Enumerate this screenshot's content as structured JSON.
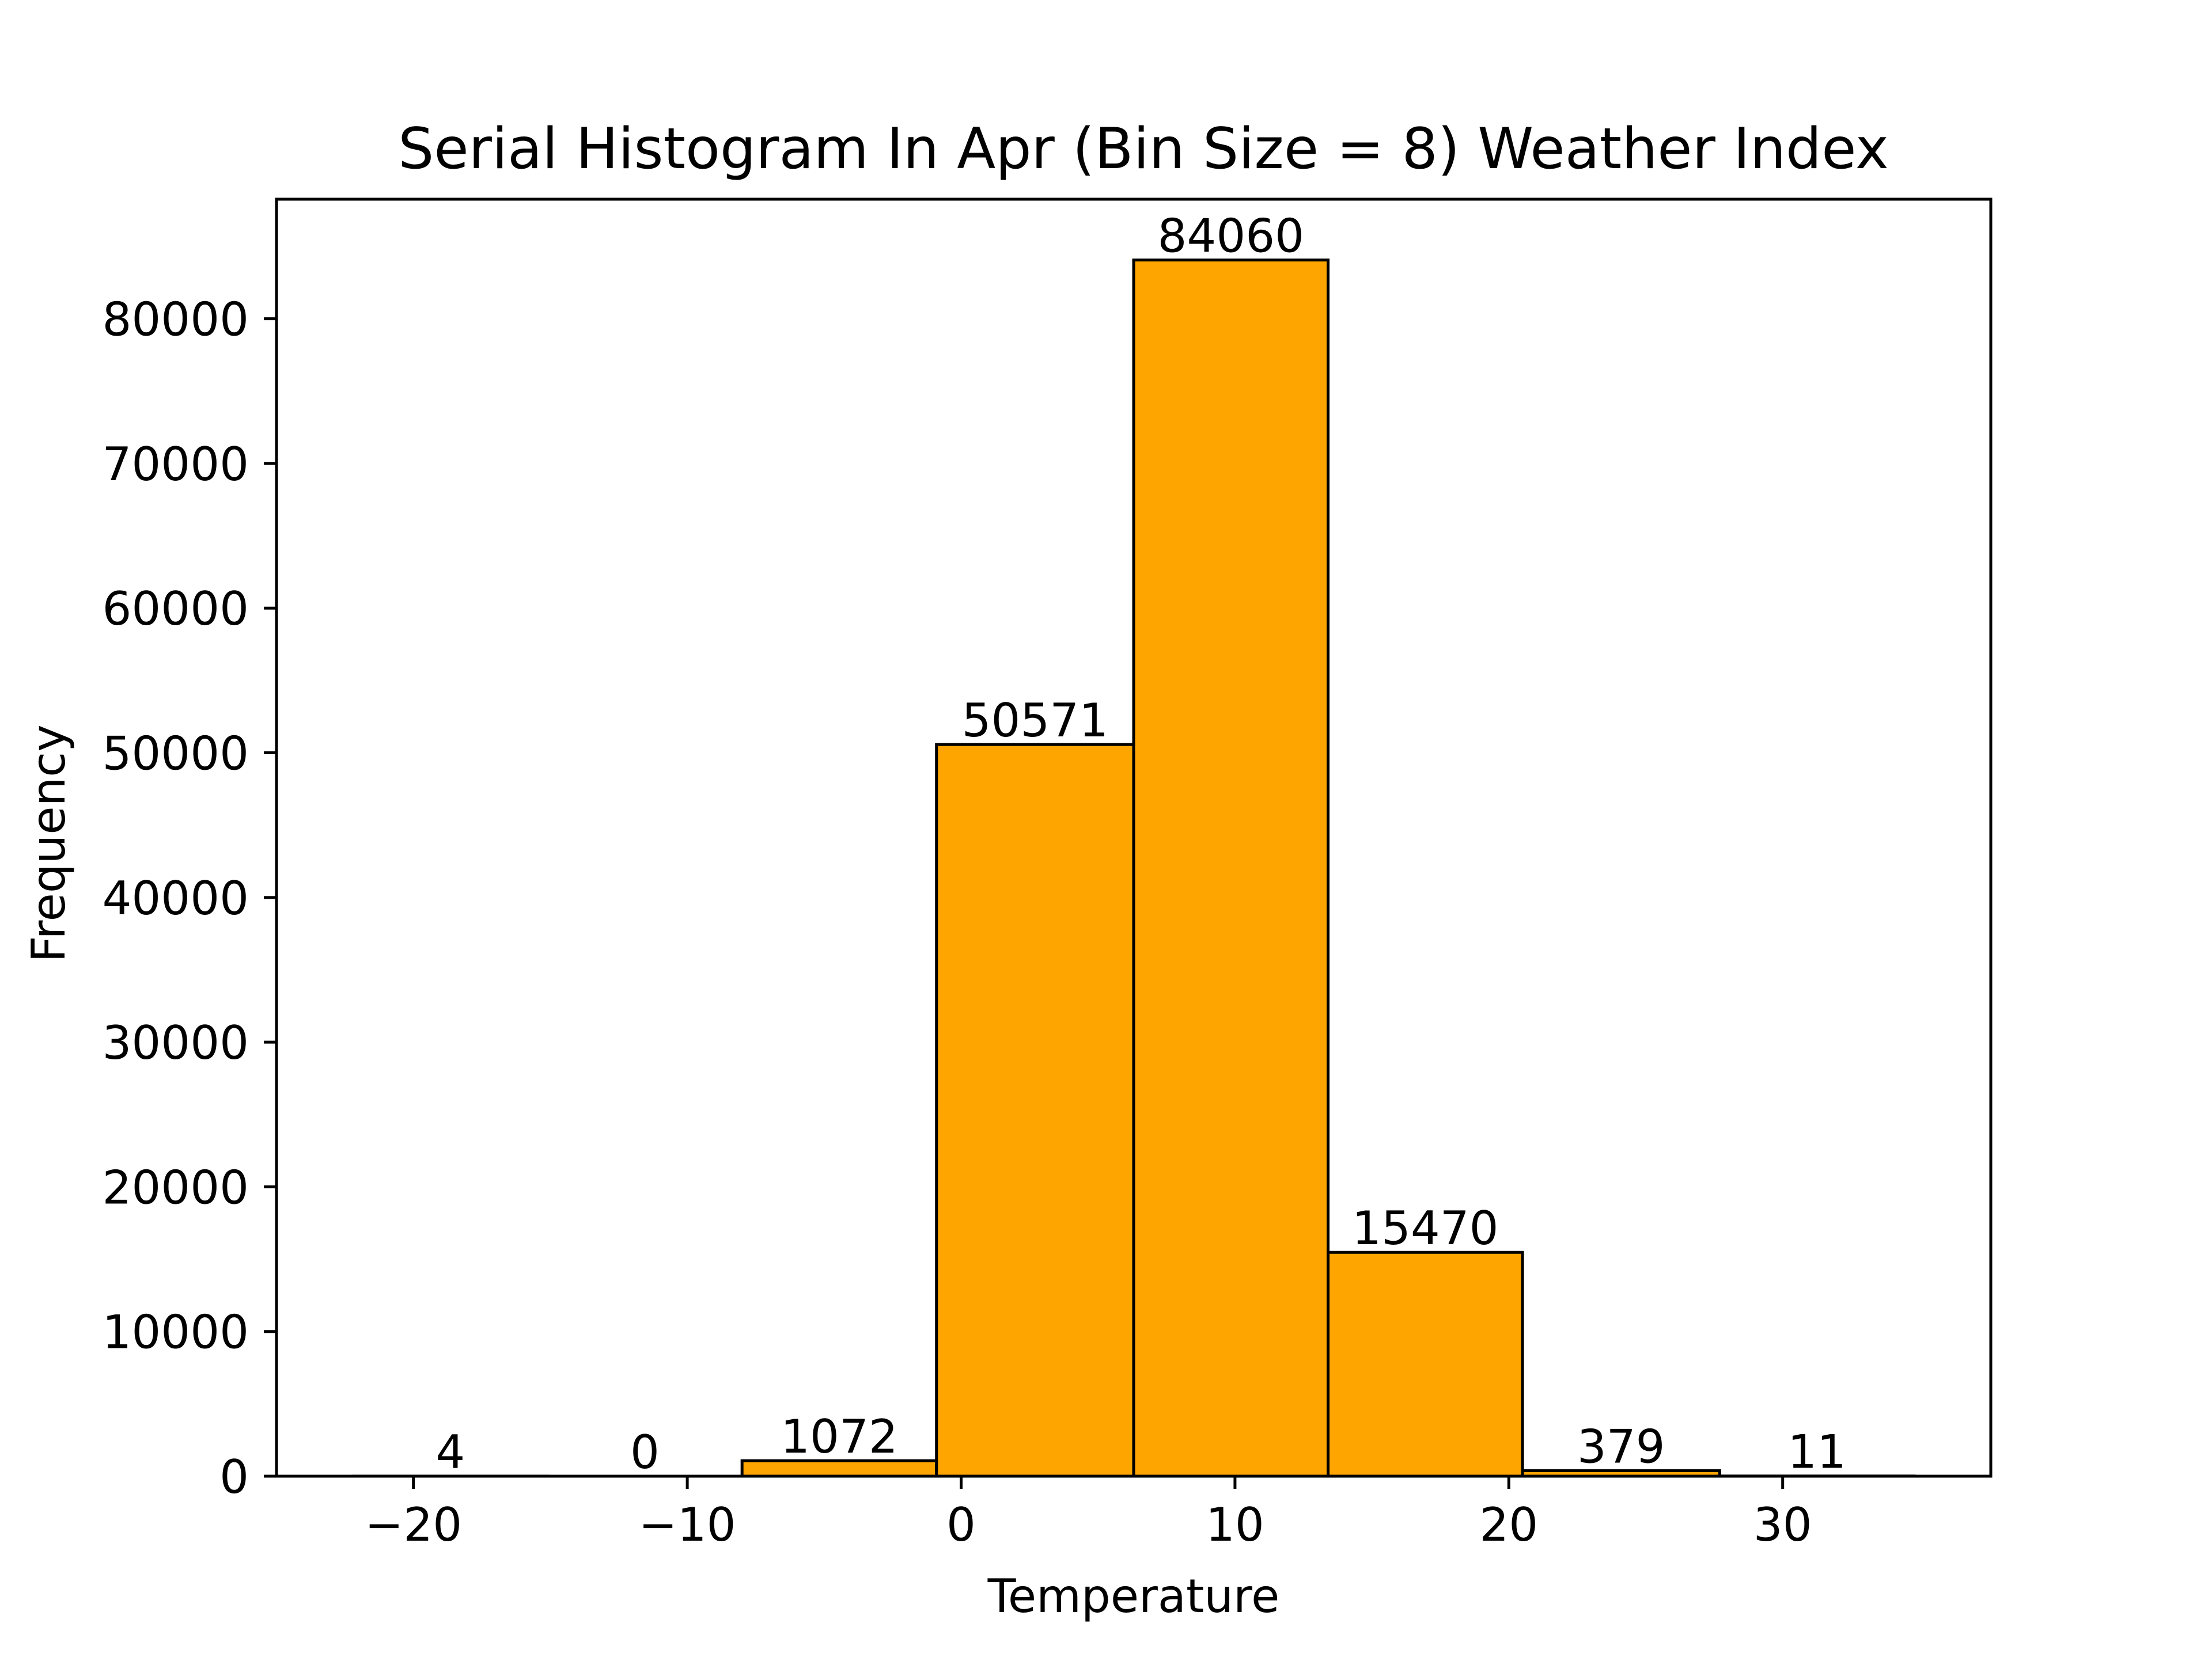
{
  "chart_data": {
    "type": "bar",
    "title": "Serial Histogram In Apr (Bin Size = 8) Weather Index",
    "xlabel": "Temperature",
    "ylabel": "Frequency",
    "xlim": [
      -25,
      37.6
    ],
    "ylim": [
      0,
      88263
    ],
    "x_ticks": [
      -20,
      -10,
      0,
      10,
      20,
      30
    ],
    "x_tick_labels": [
      "−20",
      "−10",
      "0",
      "10",
      "20",
      "30"
    ],
    "y_ticks": [
      0,
      10000,
      20000,
      30000,
      40000,
      50000,
      60000,
      70000,
      80000
    ],
    "y_tick_labels": [
      "0",
      "10000",
      "20000",
      "30000",
      "40000",
      "50000",
      "60000",
      "70000",
      "80000"
    ],
    "bins": [
      {
        "start": -22.2,
        "end": -15.1,
        "value": 4,
        "label": "4"
      },
      {
        "start": -15.1,
        "end": -8.0,
        "value": 0,
        "label": "0"
      },
      {
        "start": -8.0,
        "end": -0.9,
        "value": 1072,
        "label": "1072"
      },
      {
        "start": -0.9,
        "end": 6.3,
        "value": 50571,
        "label": "50571"
      },
      {
        "start": 6.3,
        "end": 13.4,
        "value": 84060,
        "label": "84060"
      },
      {
        "start": 13.4,
        "end": 20.5,
        "value": 15470,
        "label": "15470"
      },
      {
        "start": 20.5,
        "end": 27.7,
        "value": 379,
        "label": "379"
      },
      {
        "start": 27.7,
        "end": 34.8,
        "value": 11,
        "label": "11"
      }
    ],
    "bar_color": "#FFA500",
    "edge_color": "#000000",
    "grid": false,
    "legend": "none"
  }
}
